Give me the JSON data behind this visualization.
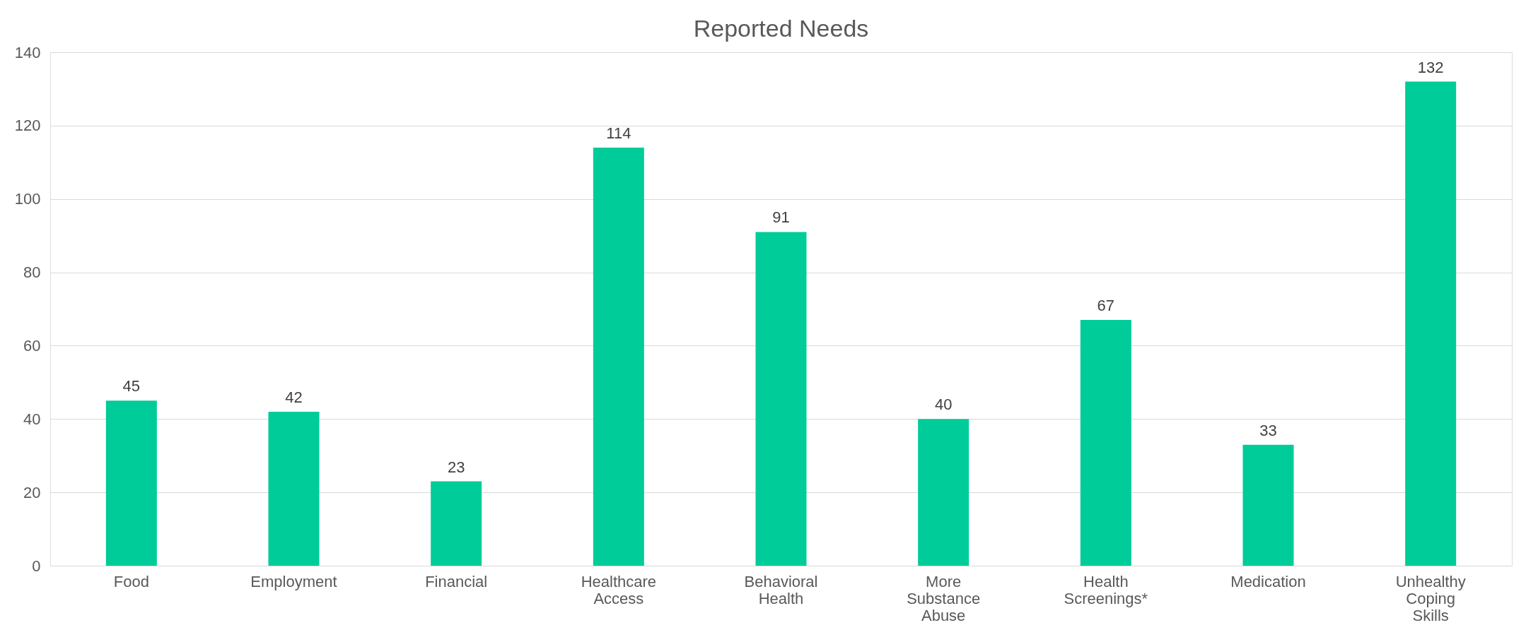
{
  "chart_data": {
    "type": "bar",
    "title": "Reported Needs",
    "categories": [
      "Food",
      "Employment",
      "Financial",
      "Healthcare Access",
      "Behavioral Health",
      "More Substance Abuse",
      "Health Screenings*",
      "Medication",
      "Unhealthy Coping Skills"
    ],
    "values": [
      45,
      42,
      23,
      114,
      91,
      40,
      67,
      33,
      132
    ],
    "color": "#00cc99",
    "ylim": [
      0,
      140
    ],
    "yticks": [
      0,
      20,
      40,
      60,
      80,
      100,
      120,
      140
    ],
    "grid": "y",
    "data_labels": true
  }
}
